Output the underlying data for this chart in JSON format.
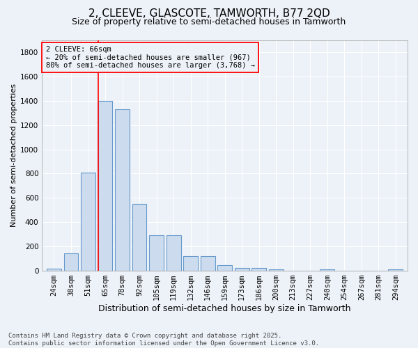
{
  "title": "2, CLEEVE, GLASCOTE, TAMWORTH, B77 2QD",
  "subtitle": "Size of property relative to semi-detached houses in Tamworth",
  "xlabel": "Distribution of semi-detached houses by size in Tamworth",
  "ylabel": "Number of semi-detached properties",
  "footer": "Contains HM Land Registry data © Crown copyright and database right 2025.\nContains public sector information licensed under the Open Government Licence v3.0.",
  "categories": [
    "24sqm",
    "38sqm",
    "51sqm",
    "65sqm",
    "78sqm",
    "92sqm",
    "105sqm",
    "119sqm",
    "132sqm",
    "146sqm",
    "159sqm",
    "173sqm",
    "186sqm",
    "200sqm",
    "213sqm",
    "227sqm",
    "240sqm",
    "254sqm",
    "267sqm",
    "281sqm",
    "294sqm"
  ],
  "values": [
    20,
    145,
    810,
    1400,
    1330,
    550,
    290,
    290,
    120,
    120,
    45,
    25,
    25,
    10,
    0,
    0,
    10,
    0,
    0,
    0,
    10
  ],
  "bar_color": "#ccdcee",
  "bar_edge_color": "#6699cc",
  "marker_line_index": 3,
  "marker_label": "2 CLEEVE: 66sqm",
  "annotation_line1": "← 20% of semi-detached houses are smaller (967)",
  "annotation_line2": "80% of semi-detached houses are larger (3,768) →",
  "ylim": [
    0,
    1900
  ],
  "yticks": [
    0,
    200,
    400,
    600,
    800,
    1000,
    1200,
    1400,
    1600,
    1800
  ],
  "background_color": "#edf2f8",
  "grid_color": "#ffffff",
  "title_fontsize": 11,
  "subtitle_fontsize": 9,
  "ylabel_fontsize": 8,
  "xlabel_fontsize": 9,
  "tick_fontsize": 7.5,
  "footer_fontsize": 6.5,
  "annot_fontsize": 7.5
}
